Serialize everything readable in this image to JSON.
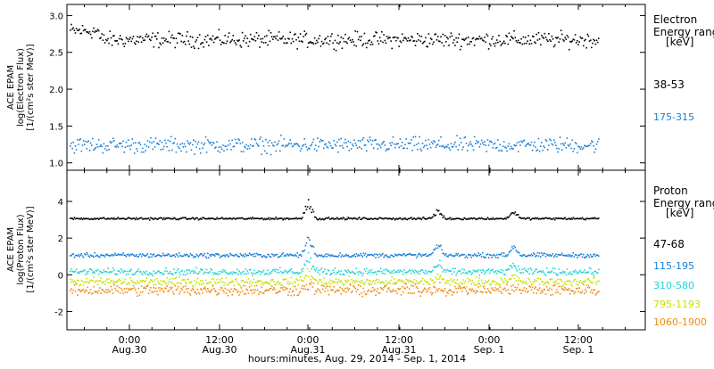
{
  "chart_data": [
    {
      "type": "scatter",
      "panel": "electron",
      "ylabel_lines": [
        "ACE EPAM",
        "log(Electron Flux)",
        "[1/(cm²s ster MeV)]"
      ],
      "ylim": [
        0.9,
        3.15
      ],
      "yticks": [
        1.0,
        1.5,
        2.0,
        2.5,
        3.0
      ],
      "ytick_labels": [
        "1.0",
        "1.5",
        "2.0",
        "2.5",
        "3.0"
      ],
      "legend_title": [
        "Electron",
        "Energy range",
        "[keV]"
      ],
      "series": [
        {
          "name": "38-53",
          "color": "#000000",
          "baseline": 2.68,
          "spread": 0.07
        },
        {
          "name": "175-315",
          "color": "#1a7fd8",
          "baseline": 1.25,
          "spread": 0.07
        }
      ]
    },
    {
      "type": "scatter",
      "panel": "proton",
      "ylabel_lines": [
        "ACE EPAM",
        "log(Proton Flux)",
        "[1/(cm²s ster MeV)]"
      ],
      "ylim": [
        -3.0,
        5.7
      ],
      "yticks": [
        -2,
        0,
        2,
        4
      ],
      "ytick_labels": [
        "-2",
        "0",
        "2",
        "4"
      ],
      "legend_title": [
        "Proton",
        "Energy range",
        "[keV]"
      ],
      "series": [
        {
          "name": "47-68",
          "color": "#000000",
          "baseline": 3.1,
          "spread": 0.04
        },
        {
          "name": "115-195",
          "color": "#1a7fd8",
          "baseline": 1.1,
          "spread": 0.08
        },
        {
          "name": "310-580",
          "color": "#22d3d3",
          "baseline": 0.2,
          "spread": 0.12
        },
        {
          "name": "795-1193",
          "color": "#c8e000",
          "baseline": -0.35,
          "spread": 0.15
        },
        {
          "name": "1060-1900",
          "color": "#f08a10",
          "baseline": -0.8,
          "spread": 0.2
        }
      ]
    }
  ],
  "x_axis": {
    "ticks": [
      {
        "time": "0:00",
        "date": "Aug.30"
      },
      {
        "time": "12:00",
        "date": "Aug.30"
      },
      {
        "time": "0:00",
        "date": "Aug.31"
      },
      {
        "time": "12:00",
        "date": "Aug.31"
      },
      {
        "time": "0:00",
        "date": "Sep. 1"
      },
      {
        "time": "12:00",
        "date": "Sep. 1"
      }
    ],
    "label": "hours:minutes, Aug. 29, 2014 - Sep.  1, 2014"
  }
}
